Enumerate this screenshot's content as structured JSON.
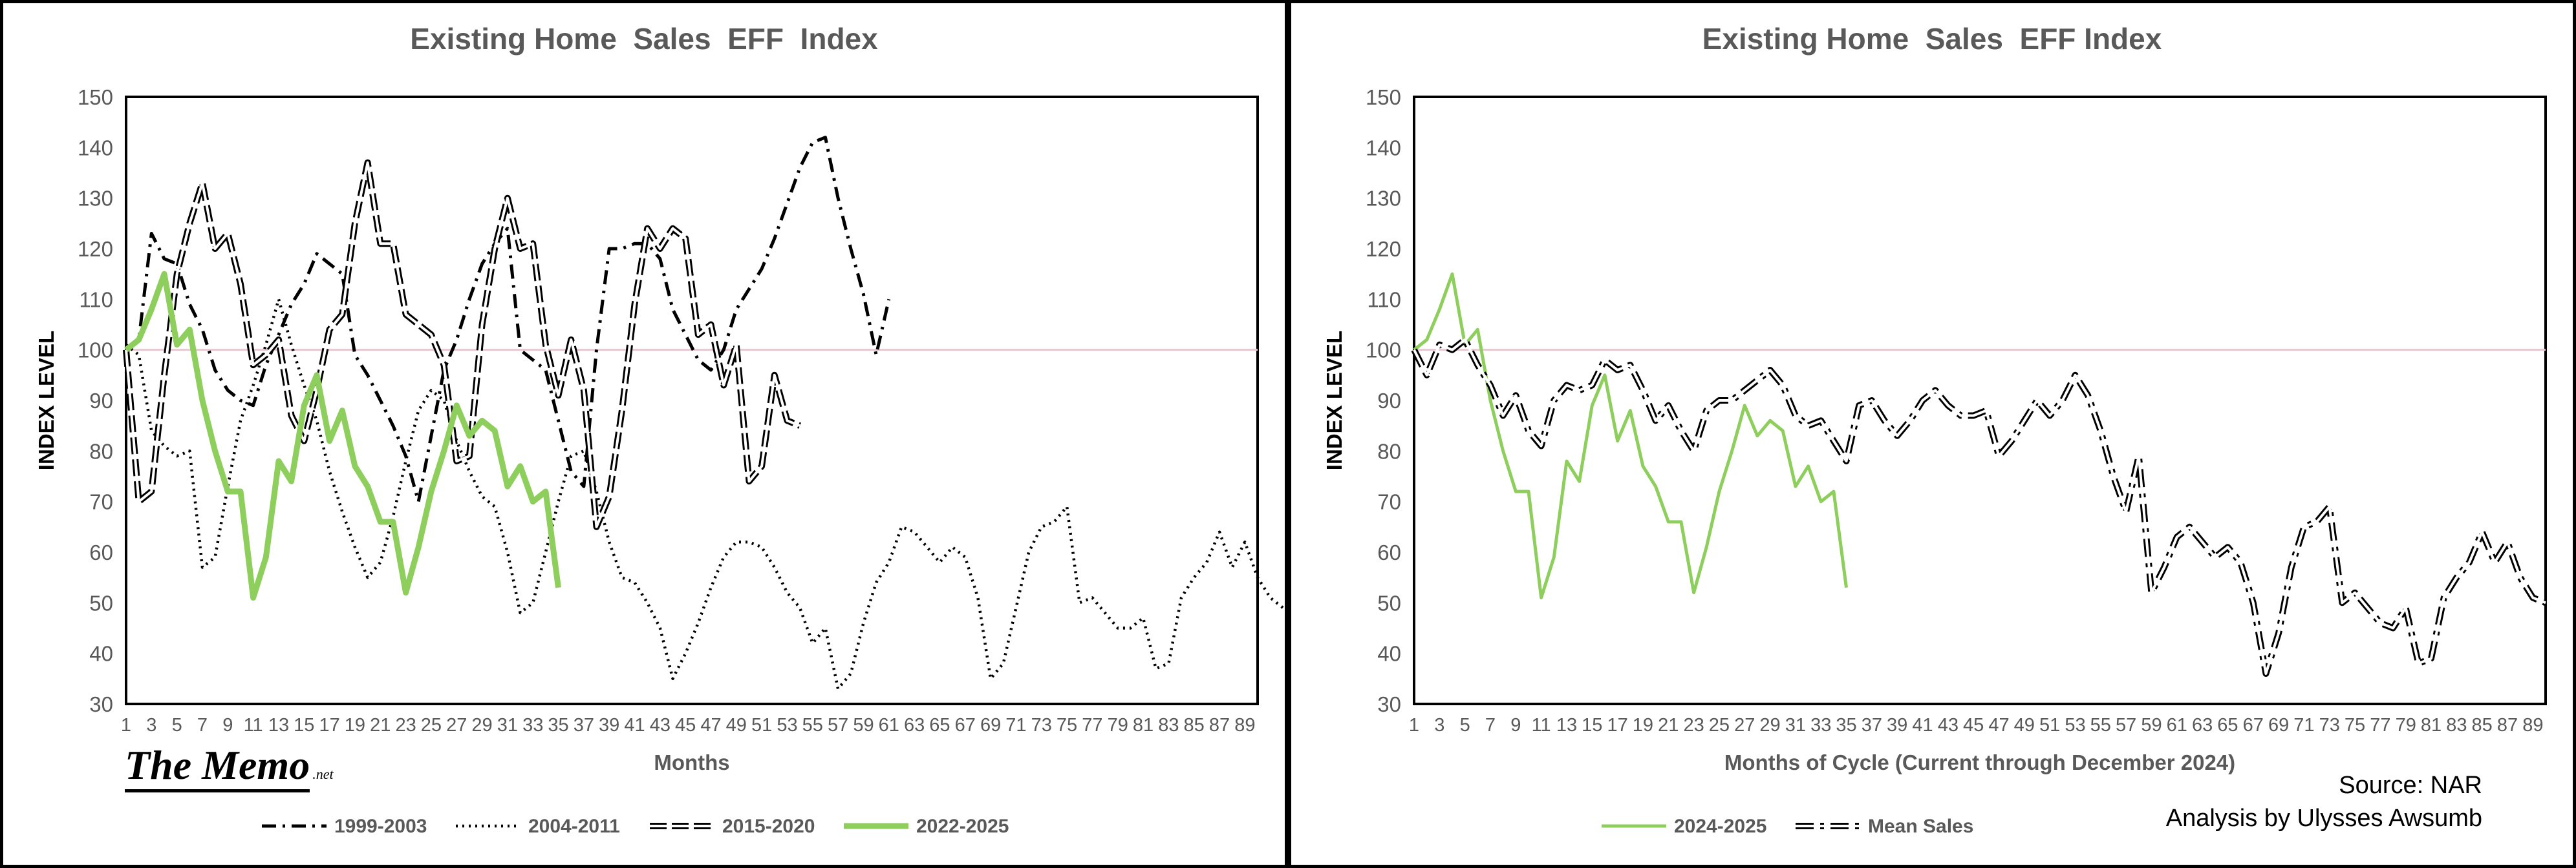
{
  "source": {
    "line1": "Source: NAR",
    "line2": "Analysis by Ulysses Awsumb"
  },
  "brand": {
    "main": "The Memo",
    "suffix": ".net"
  },
  "chart_data": [
    {
      "type": "line",
      "title": "Existing Home  Sales  EFF  Index",
      "xlabel": "Months",
      "ylabel": "INDEX LEVEL",
      "xlim": [
        1,
        90
      ],
      "ylim": [
        30,
        150
      ],
      "yticks": [
        30,
        40,
        50,
        60,
        70,
        80,
        90,
        100,
        110,
        120,
        130,
        140,
        150
      ],
      "xticks": [
        1,
        3,
        5,
        7,
        9,
        11,
        13,
        15,
        17,
        19,
        21,
        23,
        25,
        27,
        29,
        31,
        33,
        35,
        37,
        39,
        41,
        43,
        45,
        47,
        49,
        51,
        53,
        55,
        57,
        59,
        61,
        63,
        65,
        67,
        69,
        71,
        73,
        75,
        77,
        79,
        81,
        83,
        85,
        87,
        89
      ],
      "reference_line": 100,
      "grid": false,
      "legend_position": "bottom",
      "series": [
        {
          "name": "1999-2003",
          "style": "dashdot",
          "color": "#000000",
          "values": [
            100,
            102,
            123,
            118,
            117,
            109,
            104,
            96,
            92,
            90,
            89,
            97,
            103,
            109,
            113,
            119,
            117,
            115,
            99,
            95,
            90,
            85,
            79,
            70,
            83,
            96,
            102,
            110,
            117,
            121,
            124,
            100,
            98,
            96,
            86,
            76,
            73,
            100,
            120,
            120,
            121,
            121,
            118,
            108,
            103,
            98,
            96,
            100,
            108,
            112,
            116,
            122,
            129,
            136,
            141,
            142,
            130,
            120,
            111,
            99,
            110
          ]
        },
        {
          "name": "2004-2011",
          "style": "dotted",
          "color": "#000000",
          "values": [
            101,
            99,
            84,
            81,
            79,
            80,
            57,
            59,
            73,
            86,
            93,
            101,
            110,
            101,
            93,
            86,
            76,
            68,
            61,
            55,
            58,
            67,
            78,
            88,
            92,
            90,
            82,
            76,
            71,
            69,
            60,
            48,
            50,
            60,
            70,
            79,
            80,
            72,
            62,
            55,
            54,
            50,
            45,
            35,
            40,
            46,
            53,
            59,
            62,
            62,
            61,
            57,
            52,
            49,
            42,
            45,
            33,
            36,
            46,
            54,
            58,
            65,
            64,
            61,
            58,
            61,
            59,
            51,
            35,
            38,
            49,
            60,
            65,
            66,
            69,
            50,
            51,
            48,
            45,
            45,
            47,
            37,
            38,
            51,
            55,
            58,
            64,
            57,
            62,
            55,
            51,
            49,
            51
          ]
        },
        {
          "name": "2015-2020",
          "style": "double",
          "color": "#000000",
          "values": [
            100,
            70,
            72,
            95,
            115,
            125,
            133,
            120,
            123,
            113,
            97,
            99,
            102,
            87,
            82,
            92,
            104,
            107,
            125,
            137,
            121,
            121,
            107,
            105,
            103,
            97,
            78,
            79,
            105,
            120,
            130,
            120,
            121,
            101,
            91,
            102,
            92,
            65,
            71,
            88,
            109,
            124,
            120,
            124,
            122,
            103,
            105,
            93,
            101,
            74,
            77,
            95,
            86,
            85
          ]
        },
        {
          "name": "2022-2025",
          "style": "solid-thick",
          "color": "#8dce5c",
          "values": [
            100,
            102,
            108,
            115,
            101,
            104,
            90,
            80,
            72,
            72,
            51,
            59,
            78,
            74,
            89,
            95,
            82,
            88,
            77,
            73,
            66,
            66,
            52,
            61,
            72,
            80,
            89,
            83,
            86,
            84,
            73,
            77,
            70,
            72,
            53
          ]
        }
      ]
    },
    {
      "type": "line",
      "title": "Existing Home  Sales  EFF Index",
      "xlabel": "Months of Cycle (Current through December 2024)",
      "ylabel": "INDEX LEVEL",
      "xlim": [
        1,
        90
      ],
      "ylim": [
        30,
        150
      ],
      "yticks": [
        30,
        40,
        50,
        60,
        70,
        80,
        90,
        100,
        110,
        120,
        130,
        140,
        150
      ],
      "xticks": [
        1,
        3,
        5,
        7,
        9,
        11,
        13,
        15,
        17,
        19,
        21,
        23,
        25,
        27,
        29,
        31,
        33,
        35,
        37,
        39,
        41,
        43,
        45,
        47,
        49,
        51,
        53,
        55,
        57,
        59,
        61,
        63,
        65,
        67,
        69,
        71,
        73,
        75,
        77,
        79,
        81,
        83,
        85,
        87,
        89
      ],
      "reference_line": 100,
      "grid": false,
      "legend_position": "bottom",
      "series": [
        {
          "name": "2024-2025",
          "style": "solid",
          "color": "#8dce5c",
          "values": [
            100,
            102,
            108,
            115,
            101,
            104,
            90,
            80,
            72,
            72,
            51,
            59,
            78,
            74,
            89,
            95,
            82,
            88,
            77,
            73,
            66,
            66,
            52,
            61,
            72,
            80,
            89,
            83,
            86,
            84,
            73,
            77,
            70,
            72,
            53
          ]
        },
        {
          "name": "Mean Sales",
          "style": "double-dashdot",
          "color": "#000000",
          "values": [
            100,
            95,
            101,
            100,
            102,
            97,
            93,
            87,
            91,
            84,
            81,
            90,
            93,
            92,
            93,
            98,
            96,
            97,
            92,
            86,
            89,
            84,
            80,
            88,
            90,
            90,
            92,
            94,
            96,
            93,
            87,
            85,
            86,
            82,
            78,
            89,
            90,
            86,
            83,
            86,
            90,
            92,
            89,
            87,
            87,
            88,
            79,
            82,
            86,
            90,
            87,
            90,
            95,
            91,
            84,
            75,
            68,
            79,
            52,
            57,
            63,
            65,
            62,
            59,
            61,
            58,
            50,
            36,
            44,
            57,
            65,
            66,
            69,
            50,
            52,
            49,
            46,
            45,
            49,
            38,
            39,
            51,
            55,
            58,
            64,
            58,
            62,
            55,
            51,
            50
          ]
        }
      ]
    }
  ]
}
